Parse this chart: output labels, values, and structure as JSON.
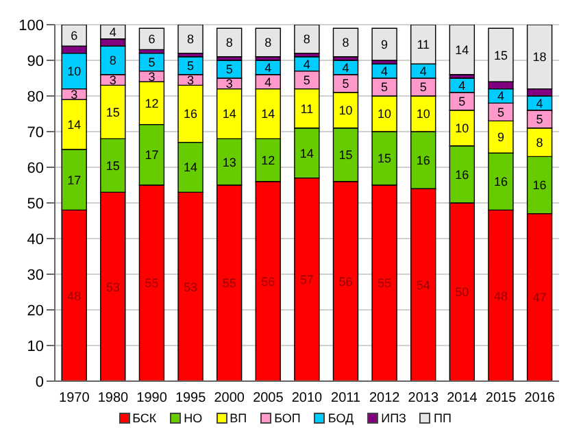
{
  "chart_data": {
    "type": "bar",
    "stacked": true,
    "categories": [
      "1970",
      "1980",
      "1990",
      "1995",
      "2000",
      "2005",
      "2010",
      "2011",
      "2012",
      "2013",
      "2014",
      "2015",
      "2016"
    ],
    "series": [
      {
        "name": "БСК",
        "color": "#ff0000",
        "values": [
          48,
          53,
          55,
          53,
          55,
          56,
          57,
          56,
          55,
          54,
          50,
          48,
          47
        ],
        "value_labels": [
          "48",
          "53",
          "55",
          "53",
          "55",
          "56",
          "57",
          "56",
          "55",
          "54",
          "50",
          "48",
          "47"
        ]
      },
      {
        "name": "НО",
        "color": "#66cc00",
        "values": [
          17,
          15,
          17,
          14,
          13,
          12,
          14,
          15,
          15,
          16,
          16,
          16,
          16
        ],
        "value_labels": [
          "17",
          "15",
          "17",
          "14",
          "13",
          "12",
          "14",
          "15",
          "15",
          "16",
          "16",
          "16",
          "16"
        ]
      },
      {
        "name": "ВП",
        "color": "#ffff00",
        "values": [
          14,
          15,
          12,
          16,
          14,
          14,
          11,
          10,
          10,
          10,
          10,
          9,
          8
        ],
        "value_labels": [
          "14",
          "15",
          "12",
          "16",
          "14",
          "14",
          "11",
          "10",
          "10",
          "10",
          "10",
          "9",
          "8"
        ]
      },
      {
        "name": "БОП",
        "color": "#ff99cc",
        "values": [
          3,
          3,
          3,
          3,
          3,
          4,
          5,
          5,
          5,
          5,
          5,
          5,
          5
        ],
        "value_labels": [
          "3",
          "3",
          "3",
          "3",
          "3",
          "4",
          "5",
          "5",
          "5",
          "5",
          "5",
          "5",
          "5"
        ]
      },
      {
        "name": "БОД",
        "color": "#00ccff",
        "values": [
          10,
          8,
          5,
          5,
          5,
          4,
          4,
          4,
          4,
          4,
          4,
          4,
          4
        ],
        "value_labels": [
          "10",
          "8",
          "5",
          "5",
          "5",
          "4",
          "4",
          "4",
          "4",
          "4",
          "4",
          "4",
          "4"
        ]
      },
      {
        "name": "ИПЗ",
        "color": "#800080",
        "values": [
          2,
          2,
          1,
          1,
          1,
          1,
          1,
          1,
          1,
          null,
          1,
          2,
          2
        ]
      },
      {
        "name": "ПП",
        "color": "#e6e6e6",
        "values": [
          6,
          4,
          6,
          8,
          8,
          8,
          8,
          8,
          9,
          11,
          14,
          15,
          18
        ],
        "value_labels": [
          "6",
          "4",
          "6",
          "8",
          "8",
          "8",
          "8",
          "8",
          "9",
          "11",
          "14",
          "15",
          "18"
        ]
      }
    ],
    "ylim": [
      0,
      100
    ],
    "yticks": [
      0,
      10,
      20,
      30,
      40,
      50,
      60,
      70,
      80,
      90,
      100
    ],
    "grid": "y",
    "legend": "bottom"
  }
}
